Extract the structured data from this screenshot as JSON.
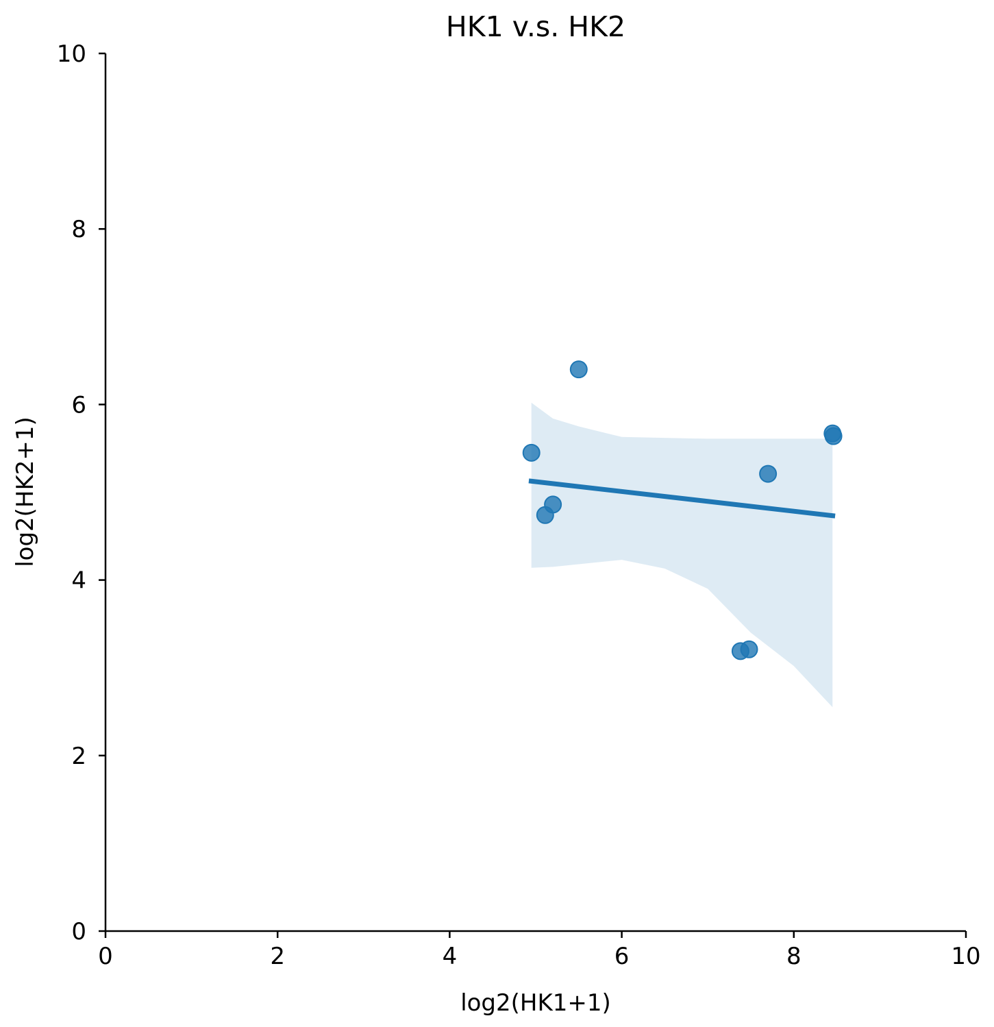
{
  "chart_data": {
    "type": "scatter",
    "title": "HK1 v.s. HK2",
    "xlabel": "log2(HK1+1)",
    "ylabel": "log2(HK2+1)",
    "xlim": [
      0,
      10
    ],
    "ylim": [
      0,
      10
    ],
    "xticks": [
      "0",
      "2",
      "4",
      "6",
      "8",
      "10"
    ],
    "yticks": [
      "0",
      "2",
      "4",
      "6",
      "8",
      "10"
    ],
    "grid": false,
    "colors": {
      "points": "#1f77b4",
      "regression_line": "#1f77b4",
      "confidence_band": "#1f77b4"
    },
    "points": [
      {
        "x": 5.5,
        "y": 6.4
      },
      {
        "x": 4.95,
        "y": 5.45
      },
      {
        "x": 5.2,
        "y": 4.86
      },
      {
        "x": 5.11,
        "y": 4.74
      },
      {
        "x": 7.7,
        "y": 5.21
      },
      {
        "x": 8.45,
        "y": 5.67
      },
      {
        "x": 8.46,
        "y": 5.64
      },
      {
        "x": 7.38,
        "y": 3.19
      },
      {
        "x": 7.48,
        "y": 3.21
      }
    ],
    "regression_line": {
      "x": [
        4.92,
        8.48
      ],
      "y": [
        5.13,
        4.73
      ]
    },
    "confidence_band": {
      "x": [
        4.95,
        5.2,
        5.5,
        6.0,
        6.5,
        7.0,
        7.38,
        7.5,
        8.0,
        8.45
      ],
      "upper": [
        6.02,
        5.84,
        5.75,
        5.63,
        5.62,
        5.61,
        5.61,
        5.61,
        5.61,
        5.61
      ],
      "lower": [
        4.14,
        4.15,
        4.18,
        4.23,
        4.13,
        3.9,
        3.52,
        3.4,
        3.02,
        2.55
      ]
    }
  }
}
